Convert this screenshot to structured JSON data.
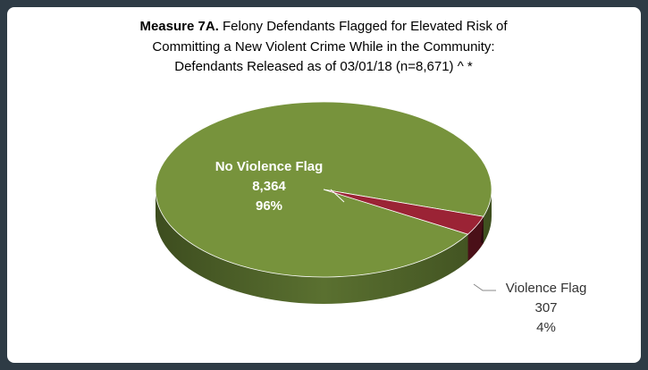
{
  "chart_data": {
    "type": "pie",
    "title_label": "Measure 7A.",
    "title_lines": [
      "Felony Defendants Flagged for Elevated Risk of",
      "Committing a New Violent Crime While in the Community:",
      "Defendants Released as of 03/01/18 (n=8,671) ^ *"
    ],
    "categories": [
      "No Violence Flag",
      "Violence Flag"
    ],
    "values": [
      8364,
      307
    ],
    "value_labels": [
      "8,364",
      "307"
    ],
    "percent_labels": [
      "96%",
      "4%"
    ],
    "colors": [
      "#77933c",
      "#9b2335"
    ]
  }
}
